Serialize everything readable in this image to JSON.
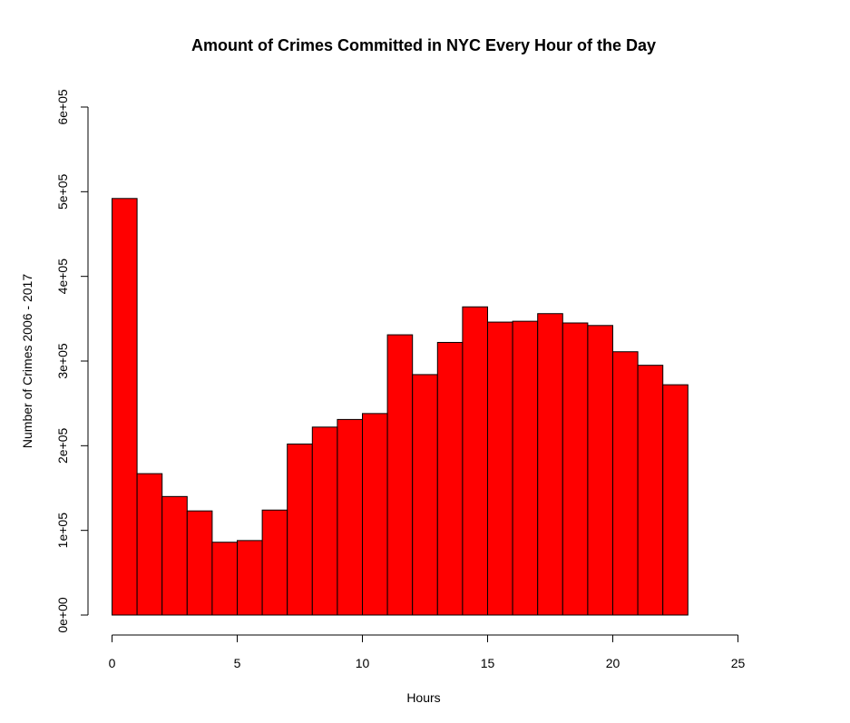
{
  "chart_data": {
    "type": "bar",
    "title": "Amount of Crimes Committed in NYC Every Hour of the Day",
    "xlabel": "Hours",
    "ylabel": "Number of Crimes 2006 - 2017",
    "bin_edges": [
      0,
      1,
      2,
      3,
      4,
      5,
      6,
      7,
      8,
      9,
      10,
      11,
      12,
      13,
      14,
      15,
      16,
      17,
      18,
      19,
      20,
      21,
      22,
      23
    ],
    "values": [
      492000,
      167000,
      140000,
      123000,
      86000,
      88000,
      124000,
      202000,
      222000,
      231000,
      238000,
      331000,
      284000,
      322000,
      364000,
      346000,
      347000,
      356000,
      345000,
      342000,
      311000,
      295000,
      272000
    ],
    "xlim": [
      0,
      25
    ],
    "ylim": [
      0,
      600000
    ],
    "x_ticks": [
      0,
      5,
      10,
      15,
      20,
      25
    ],
    "x_tick_labels": [
      "0",
      "5",
      "10",
      "15",
      "20",
      "25"
    ],
    "y_ticks": [
      0,
      100000,
      200000,
      300000,
      400000,
      500000,
      600000
    ],
    "y_tick_labels": [
      "0e+00",
      "1e+05",
      "2e+05",
      "3e+05",
      "4e+05",
      "5e+05",
      "6e+05"
    ],
    "bar_color": "#ff0000",
    "bar_edge_color": "#000000",
    "grid": false
  }
}
